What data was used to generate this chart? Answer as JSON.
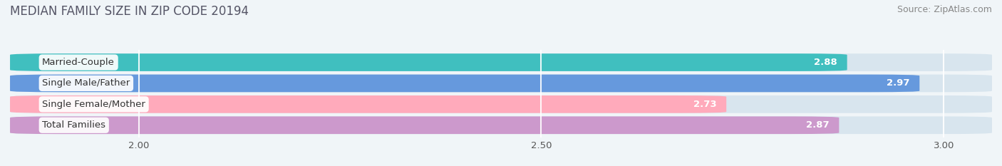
{
  "title": "MEDIAN FAMILY SIZE IN ZIP CODE 20194",
  "source": "Source: ZipAtlas.com",
  "categories": [
    "Married-Couple",
    "Single Male/Father",
    "Single Female/Mother",
    "Total Families"
  ],
  "values": [
    2.88,
    2.97,
    2.73,
    2.87
  ],
  "bar_colors": [
    "#40bfbf",
    "#6699dd",
    "#ffaabb",
    "#cc99cc"
  ],
  "xmin": 1.84,
  "xmax": 3.06,
  "xticks": [
    2.0,
    2.5,
    3.0
  ],
  "xtick_labels": [
    "2.00",
    "2.50",
    "3.00"
  ],
  "bar_height": 0.72,
  "bar_gap": 1.0,
  "title_fontsize": 12,
  "source_fontsize": 9,
  "label_fontsize": 9.5,
  "value_fontsize": 9.5,
  "tick_fontsize": 9.5,
  "background_color": "#f0f5f8",
  "bar_bg_color": "#d8e5ee"
}
